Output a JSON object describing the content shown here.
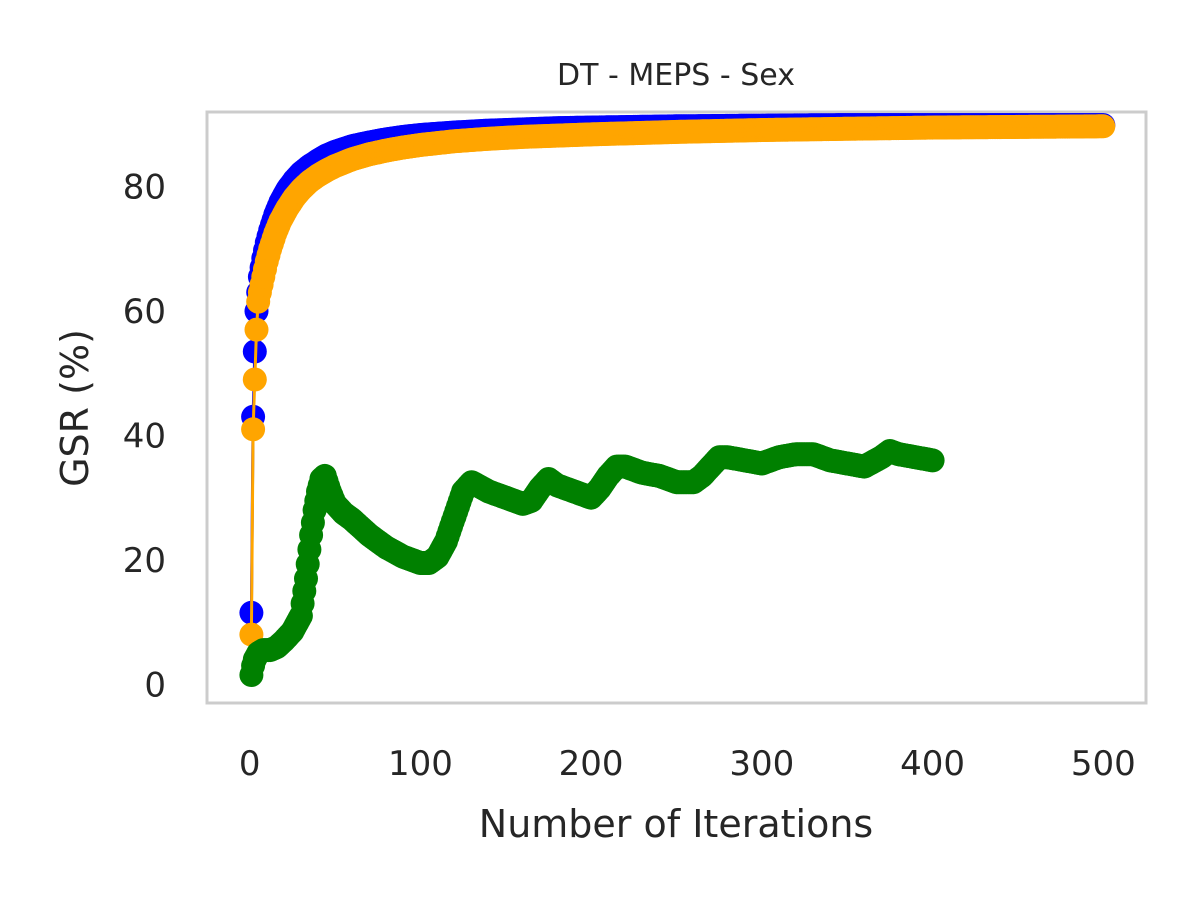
{
  "chart_data": {
    "type": "line",
    "title": "DT - MEPS - Sex",
    "xlabel": "Number of Iterations",
    "ylabel": "GSR (%)",
    "xlim": [
      -25,
      525
    ],
    "ylim": [
      -3,
      92
    ],
    "xticks": [
      0,
      100,
      200,
      300,
      400,
      500
    ],
    "xtick_labels": [
      "0",
      "100",
      "200",
      "300",
      "400",
      "500"
    ],
    "yticks": [
      0,
      20,
      40,
      60,
      80
    ],
    "ytick_labels": [
      "0",
      "20",
      "40",
      "60",
      "80"
    ],
    "grid": false,
    "legend": null,
    "series": [
      {
        "name": "blue",
        "color": "#0000ff",
        "x": [
          1,
          2,
          3,
          4,
          5,
          6,
          8,
          10,
          12,
          15,
          18,
          22,
          26,
          30,
          35,
          40,
          45,
          50,
          60,
          70,
          80,
          90,
          100,
          120,
          140,
          160,
          180,
          200,
          250,
          300,
          350,
          400,
          450,
          500
        ],
        "y": [
          11.5,
          43,
          53.5,
          60,
          63,
          65.5,
          68.5,
          71,
          73,
          75.5,
          77.5,
          79.5,
          81,
          82.2,
          83.3,
          84.2,
          85,
          85.6,
          86.5,
          87.1,
          87.6,
          88,
          88.3,
          88.7,
          89,
          89.2,
          89.4,
          89.5,
          89.7,
          89.8,
          89.9,
          89.9,
          89.9,
          89.9
        ]
      },
      {
        "name": "orange",
        "color": "#ffa500",
        "x": [
          1,
          2,
          3,
          4,
          5,
          6,
          8,
          10,
          12,
          15,
          18,
          22,
          26,
          30,
          35,
          40,
          45,
          50,
          60,
          70,
          80,
          90,
          100,
          120,
          140,
          160,
          180,
          200,
          250,
          300,
          350,
          400,
          450,
          500
        ],
        "y": [
          8,
          41,
          49,
          57,
          61.5,
          63,
          65.5,
          68,
          70,
          72.5,
          74.5,
          76.5,
          78.2,
          79.5,
          80.8,
          81.8,
          82.6,
          83.3,
          84.4,
          85.2,
          85.8,
          86.3,
          86.7,
          87.3,
          87.7,
          88,
          88.2,
          88.4,
          88.8,
          89.1,
          89.3,
          89.5,
          89.6,
          89.7
        ]
      },
      {
        "name": "green",
        "color": "#008000",
        "x": [
          1,
          2,
          3,
          5,
          8,
          12,
          16,
          20,
          25,
          30,
          33,
          36,
          38,
          40,
          42,
          44,
          47,
          50,
          55,
          60,
          70,
          80,
          90,
          100,
          105,
          110,
          115,
          120,
          125,
          130,
          140,
          150,
          160,
          165,
          170,
          175,
          180,
          190,
          200,
          205,
          210,
          215,
          220,
          230,
          240,
          250,
          260,
          265,
          270,
          275,
          280,
          290,
          300,
          310,
          320,
          330,
          340,
          350,
          360,
          370,
          375,
          380,
          390,
          400
        ],
        "y": [
          1.5,
          3,
          4,
          5,
          5.5,
          5.5,
          6,
          7,
          8.5,
          11,
          17,
          24,
          28,
          31,
          33,
          33.5,
          31,
          29,
          27.5,
          26.5,
          24,
          22,
          20.5,
          19.5,
          19.5,
          20.5,
          23,
          27,
          31,
          32.5,
          31,
          30,
          29,
          29.5,
          31.5,
          33,
          32,
          31,
          30,
          31.5,
          33.5,
          35,
          35,
          34,
          33.5,
          32.5,
          32.5,
          33.5,
          35,
          36.5,
          36.5,
          36,
          35.5,
          36.5,
          37,
          37,
          36,
          35.5,
          35,
          36.5,
          37.5,
          37,
          36.5,
          36
        ]
      }
    ]
  }
}
